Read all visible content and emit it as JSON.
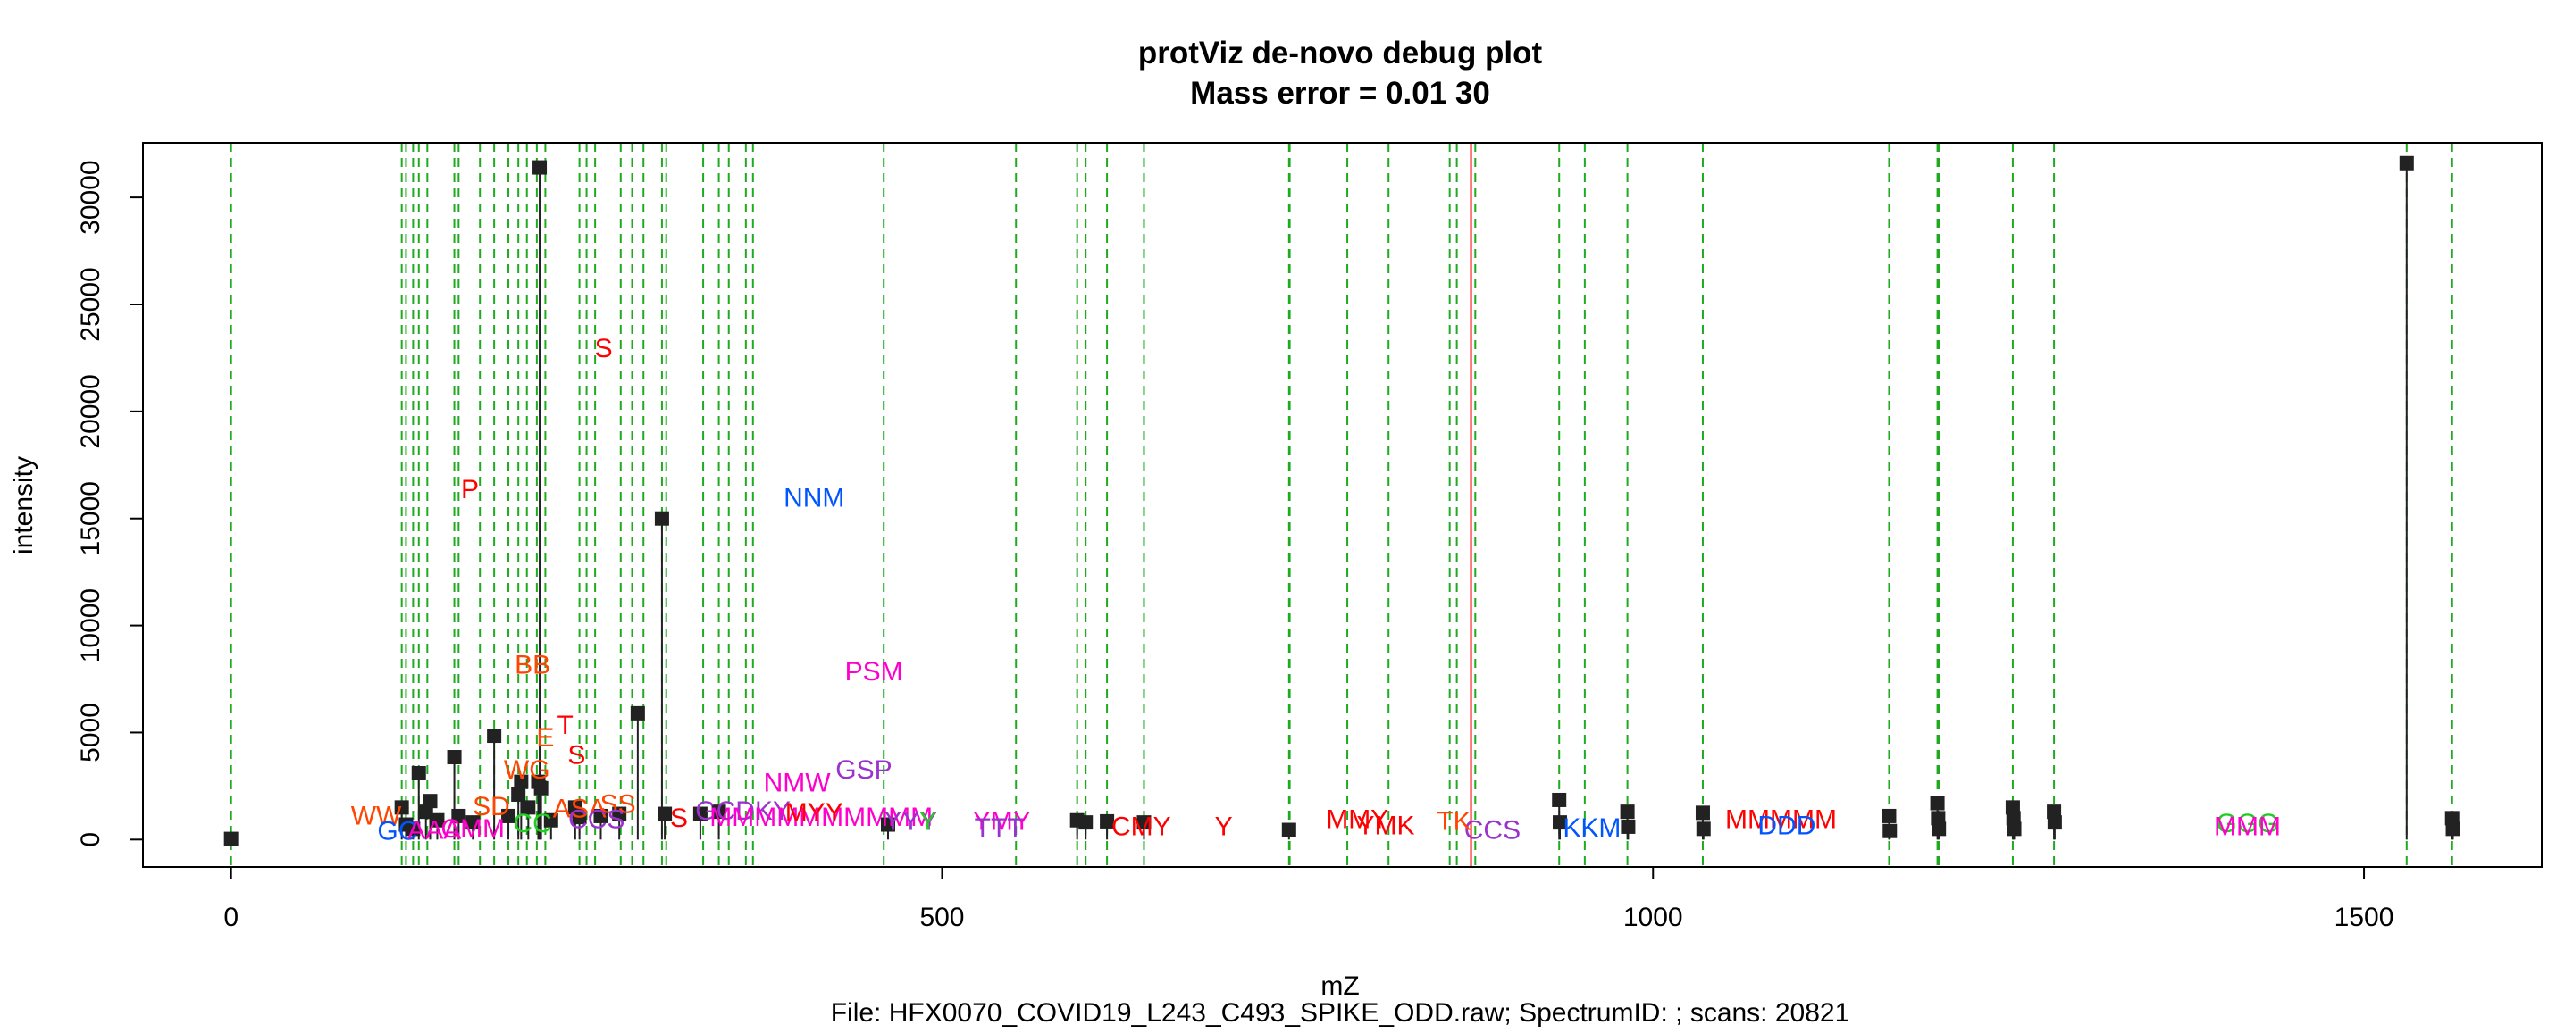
{
  "chart_data": {
    "type": "scatter",
    "title": "protViz de-novo debug plot",
    "subtitle": "Mass error = 0.01 30",
    "xlabel": "mZ",
    "ylabel": "intensity",
    "footer": "File: HFX0070_COVID19_L243_C493_SPIKE_ODD.raw; SpectrumID: ; scans: 20821",
    "xlim": [
      -62,
      1625
    ],
    "ylim": [
      -1280,
      32550
    ],
    "x_ticks": [
      "0",
      "500",
      "1000",
      "1500"
    ],
    "y_ticks": [
      "0",
      "5000",
      "10000",
      "15000",
      "20000",
      "25000",
      "30000"
    ],
    "x_tick_values": [
      0,
      500,
      1000,
      1500
    ],
    "y_tick_values": [
      0,
      5000,
      10000,
      15000,
      20000,
      25000,
      30000
    ],
    "grid": false,
    "colors": {
      "peak": "#222222",
      "guide_line": "#1faa1f",
      "precursor_line": "#ff0000",
      "label_red": "#ff0000",
      "label_orange": "#ff4500",
      "label_magenta": "#ff00cc",
      "label_purple": "#9933cc",
      "label_blue": "#0055ff",
      "label_green": "#22cc22"
    },
    "precursor_mz": 872,
    "guide_lines_mz": [
      0,
      120,
      123,
      128,
      132,
      138,
      157,
      160,
      175,
      185,
      195,
      202,
      208,
      215,
      221,
      245,
      250,
      256,
      274,
      282,
      290,
      303,
      306,
      332,
      343,
      350,
      362,
      367,
      459,
      552,
      595,
      601,
      616,
      642,
      744,
      744.5,
      785,
      814,
      857,
      862,
      875,
      934,
      952,
      982,
      1035,
      1166,
      1200,
      1201,
      1253,
      1282,
      1530,
      1562
    ],
    "peaks": [
      {
        "mz": 0,
        "intensity": 30
      },
      {
        "mz": 120,
        "intensity": 1500
      },
      {
        "mz": 123,
        "intensity": 700
      },
      {
        "mz": 128,
        "intensity": 500
      },
      {
        "mz": 132,
        "intensity": 3100
      },
      {
        "mz": 137,
        "intensity": 1300
      },
      {
        "mz": 140,
        "intensity": 1800
      },
      {
        "mz": 145,
        "intensity": 900
      },
      {
        "mz": 157,
        "intensity": 3850
      },
      {
        "mz": 160,
        "intensity": 1100
      },
      {
        "mz": 170,
        "intensity": 800
      },
      {
        "mz": 185,
        "intensity": 4850
      },
      {
        "mz": 195,
        "intensity": 1100
      },
      {
        "mz": 202,
        "intensity": 2100
      },
      {
        "mz": 204,
        "intensity": 2700
      },
      {
        "mz": 209,
        "intensity": 1500
      },
      {
        "mz": 216,
        "intensity": 2700
      },
      {
        "mz": 217,
        "intensity": 31400
      },
      {
        "mz": 218,
        "intensity": 2400
      },
      {
        "mz": 225,
        "intensity": 900
      },
      {
        "mz": 242,
        "intensity": 1500
      },
      {
        "mz": 245,
        "intensity": 1050
      },
      {
        "mz": 260,
        "intensity": 1100
      },
      {
        "mz": 273,
        "intensity": 1200
      },
      {
        "mz": 286,
        "intensity": 5900
      },
      {
        "mz": 303,
        "intensity": 15000
      },
      {
        "mz": 305,
        "intensity": 1200
      },
      {
        "mz": 330,
        "intensity": 1200
      },
      {
        "mz": 343,
        "intensity": 1300
      },
      {
        "mz": 462,
        "intensity": 700
      },
      {
        "mz": 595,
        "intensity": 900
      },
      {
        "mz": 601,
        "intensity": 800
      },
      {
        "mz": 616,
        "intensity": 850
      },
      {
        "mz": 642,
        "intensity": 800
      },
      {
        "mz": 744,
        "intensity": 450
      },
      {
        "mz": 934,
        "intensity": 1850
      },
      {
        "mz": 934.5,
        "intensity": 800
      },
      {
        "mz": 982,
        "intensity": 1300
      },
      {
        "mz": 982.5,
        "intensity": 600
      },
      {
        "mz": 1035,
        "intensity": 1250
      },
      {
        "mz": 1035.5,
        "intensity": 500
      },
      {
        "mz": 1166,
        "intensity": 1100
      },
      {
        "mz": 1166.5,
        "intensity": 400
      },
      {
        "mz": 1200,
        "intensity": 1700
      },
      {
        "mz": 1200.5,
        "intensity": 1000
      },
      {
        "mz": 1201,
        "intensity": 500
      },
      {
        "mz": 1253,
        "intensity": 1500
      },
      {
        "mz": 1253.5,
        "intensity": 1000
      },
      {
        "mz": 1254,
        "intensity": 500
      },
      {
        "mz": 1282,
        "intensity": 1300
      },
      {
        "mz": 1282.5,
        "intensity": 800
      },
      {
        "mz": 1530,
        "intensity": 31600
      },
      {
        "mz": 1562,
        "intensity": 1000
      },
      {
        "mz": 1562.5,
        "intensity": 500
      }
    ],
    "fragment_labels": [
      {
        "text": "S",
        "mz": 262,
        "intensity": 23000,
        "color": "#ff0000"
      },
      {
        "text": "P",
        "mz": 168,
        "intensity": 16400,
        "color": "#ff0000"
      },
      {
        "text": "NNM",
        "mz": 410,
        "intensity": 16000,
        "color": "#0055ff"
      },
      {
        "text": "BB",
        "mz": 212,
        "intensity": 8200,
        "color": "#ff4500"
      },
      {
        "text": "PSM",
        "mz": 452,
        "intensity": 7900,
        "color": "#ff00cc"
      },
      {
        "text": "T",
        "mz": 235,
        "intensity": 5400,
        "color": "#ff0000"
      },
      {
        "text": "E",
        "mz": 221,
        "intensity": 4800,
        "color": "#ff4500"
      },
      {
        "text": "S",
        "mz": 243,
        "intensity": 4000,
        "color": "#ff0000"
      },
      {
        "text": "WG",
        "mz": 208,
        "intensity": 3300,
        "color": "#ff4500"
      },
      {
        "text": "GSP",
        "mz": 445,
        "intensity": 3300,
        "color": "#9933cc"
      },
      {
        "text": "NMW",
        "mz": 398,
        "intensity": 2700,
        "color": "#ff00cc"
      },
      {
        "text": "SD",
        "mz": 183,
        "intensity": 1600,
        "color": "#ff4500"
      },
      {
        "text": "SS",
        "mz": 272,
        "intensity": 1700,
        "color": "#ff4500"
      },
      {
        "text": "ASA",
        "mz": 245,
        "intensity": 1500,
        "color": "#ff4500"
      },
      {
        "text": "WW",
        "mz": 102,
        "intensity": 1150,
        "color": "#ff4500"
      },
      {
        "text": "GC",
        "mz": 117,
        "intensity": 450,
        "color": "#0055ff"
      },
      {
        "text": "AAA",
        "mz": 143,
        "intensity": 500,
        "color": "#ff00cc"
      },
      {
        "text": "CMM",
        "mz": 170,
        "intensity": 550,
        "color": "#ff00cc"
      },
      {
        "text": "CC",
        "mz": 212,
        "intensity": 800,
        "color": "#22cc22"
      },
      {
        "text": "CCS",
        "mz": 257,
        "intensity": 1000,
        "color": "#9933cc"
      },
      {
        "text": "S",
        "mz": 315,
        "intensity": 1050,
        "color": "#ff0000"
      },
      {
        "text": "GCDKY",
        "mz": 360,
        "intensity": 1400,
        "color": "#9933cc"
      },
      {
        "text": "MMMMMMMMMM",
        "mz": 415,
        "intensity": 1100,
        "color": "#ff00cc"
      },
      {
        "text": "MYY",
        "mz": 410,
        "intensity": 1300,
        "color": "#ff0000"
      },
      {
        "text": "YYY",
        "mz": 478,
        "intensity": 900,
        "color": "#9933cc"
      },
      {
        "text": "Y",
        "mz": 490,
        "intensity": 900,
        "color": "#22cc22"
      },
      {
        "text": "YMY",
        "mz": 542,
        "intensity": 900,
        "color": "#ff00cc"
      },
      {
        "text": "TTT",
        "mz": 540,
        "intensity": 600,
        "color": "#9933cc"
      },
      {
        "text": "CMY",
        "mz": 640,
        "intensity": 650,
        "color": "#ff0000"
      },
      {
        "text": "Y",
        "mz": 698,
        "intensity": 650,
        "color": "#ff0000"
      },
      {
        "text": "MMY",
        "mz": 792,
        "intensity": 1000,
        "color": "#ff0000"
      },
      {
        "text": "YMK",
        "mz": 812,
        "intensity": 700,
        "color": "#ff0000"
      },
      {
        "text": "CCS",
        "mz": 887,
        "intensity": 500,
        "color": "#9933cc"
      },
      {
        "text": "TK",
        "mz": 860,
        "intensity": 900,
        "color": "#ff4500"
      },
      {
        "text": "KKM",
        "mz": 957,
        "intensity": 600,
        "color": "#0055ff"
      },
      {
        "text": "MMMMM",
        "mz": 1090,
        "intensity": 1000,
        "color": "#ff0000"
      },
      {
        "text": "DDD",
        "mz": 1094,
        "intensity": 700,
        "color": "#0055ff"
      },
      {
        "text": "GGG",
        "mz": 1418,
        "intensity": 800,
        "color": "#22cc22"
      },
      {
        "text": "MMM",
        "mz": 1418,
        "intensity": 650,
        "color": "#ff00cc"
      }
    ]
  }
}
